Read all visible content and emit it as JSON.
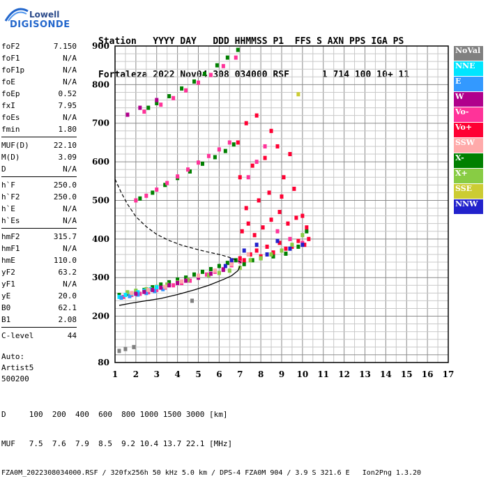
{
  "logo": {
    "line1": "Lowell",
    "line2": "DIGISONDE"
  },
  "header": {
    "labels": "Station   YYYY DAY   DDD HHMMSS P1  FFS S AXN PPS IGA PS",
    "values": "Fortaleza 2022 Nov04 308 034000 RSF      1 714 100 10+ 11"
  },
  "params": [
    {
      "name": "foF2",
      "value": "7.150"
    },
    {
      "name": "foF1",
      "value": "N/A"
    },
    {
      "name": "foF1p",
      "value": "N/A"
    },
    {
      "name": "foE",
      "value": "N/A"
    },
    {
      "name": "foEp",
      "value": "0.52"
    },
    {
      "name": "fxI",
      "value": "7.95"
    },
    {
      "name": "foEs",
      "value": "N/A"
    },
    {
      "name": "fmin",
      "value": "1.80"
    },
    {
      "sep": true
    },
    {
      "name": "MUF(D)",
      "value": "22.10"
    },
    {
      "name": "M(D)",
      "value": "3.09"
    },
    {
      "name": "D",
      "value": "N/A"
    },
    {
      "sep": true
    },
    {
      "name": "h`F",
      "value": "250.0"
    },
    {
      "name": "h`F2",
      "value": "250.0"
    },
    {
      "name": "h`E",
      "value": "N/A"
    },
    {
      "name": "h`Es",
      "value": "N/A"
    },
    {
      "sep": true
    },
    {
      "name": "hmF2",
      "value": "315.7"
    },
    {
      "name": "hmF1",
      "value": "N/A"
    },
    {
      "name": "hmE",
      "value": "110.0"
    },
    {
      "name": "yF2",
      "value": "63.2"
    },
    {
      "name": "yF1",
      "value": "N/A"
    },
    {
      "name": "yE",
      "value": "20.0"
    },
    {
      "name": "B0",
      "value": "62.1"
    },
    {
      "name": "B1",
      "value": "2.08"
    },
    {
      "sep": true
    },
    {
      "name": "C-level",
      "value": "44"
    }
  ],
  "auto": {
    "line1": "Auto:",
    "line2": "Artist5",
    "line3": "500200"
  },
  "legend": [
    {
      "label": "NoVal",
      "color": "#808080"
    },
    {
      "label": "NNE",
      "color": "#00e5ff"
    },
    {
      "label": "E",
      "color": "#3399ff"
    },
    {
      "label": "W",
      "color": "#b0008c"
    },
    {
      "label": "Vo-",
      "color": "#ff3399"
    },
    {
      "label": "Vo+",
      "color": "#ff0033"
    },
    {
      "label": "SSW",
      "color": "#ffaaaa"
    },
    {
      "label": "X-",
      "color": "#008000"
    },
    {
      "label": "X+",
      "color": "#88cc44"
    },
    {
      "label": "SSE",
      "color": "#cccc33"
    },
    {
      "label": "NNW",
      "color": "#2222cc"
    }
  ],
  "footer": {
    "line1": "D     100  200  400  600  800 1000 1500 3000 [km]",
    "line2": "MUF   7.5  7.6  7.9  8.5  9.2 10.4 13.7 22.1 [MHz]",
    "line3": "FZA0M_2022308034000.RSF / 320fx256h 50 kHz 5.0 km / DPS-4 FZA0M 904 / 3.9 S 321.6 E   Ion2Png 1.3.20"
  },
  "chart_data": {
    "type": "scatter",
    "title": "",
    "xlabel": "",
    "ylabel": "",
    "xlim": [
      1,
      17
    ],
    "ylim": [
      80,
      900
    ],
    "x_ticks": [
      1,
      2,
      3,
      4,
      5,
      6,
      7,
      8,
      9,
      10,
      11,
      12,
      13,
      14,
      15,
      16,
      17
    ],
    "y_ticks": [
      80,
      200,
      300,
      400,
      500,
      600,
      700,
      800,
      900
    ],
    "grid": true,
    "series": [
      {
        "name": "X-",
        "color": "#008000",
        "x": [
          1.2,
          1.6,
          2.0,
          2.4,
          2.8,
          3.2,
          3.6,
          4.0,
          4.4,
          4.8,
          5.2,
          5.6,
          6.0,
          6.4,
          6.8,
          2.2,
          2.8,
          3.4,
          4.0,
          4.6,
          5.2,
          5.8,
          6.3,
          6.7,
          2.6,
          3.0,
          3.6,
          4.2,
          4.8,
          5.3,
          5.9,
          6.4,
          6.9,
          7.2,
          7.6,
          8.0,
          8.6,
          9.2,
          9.8,
          10.2
        ],
        "y": [
          255,
          258,
          262,
          268,
          275,
          282,
          288,
          295,
          300,
          308,
          315,
          322,
          330,
          338,
          345,
          505,
          520,
          540,
          558,
          575,
          595,
          612,
          628,
          645,
          740,
          752,
          770,
          790,
          808,
          828,
          850,
          870,
          890,
          335,
          345,
          350,
          355,
          362,
          380,
          420
        ]
      },
      {
        "name": "Vo-",
        "color": "#ff3399",
        "x": [
          1.4,
          1.8,
          2.2,
          2.6,
          3.0,
          3.4,
          3.8,
          4.2,
          4.6,
          5.0,
          5.4,
          5.8,
          6.2,
          6.6,
          7.0,
          2.0,
          2.5,
          3.0,
          3.5,
          4.0,
          4.5,
          5.0,
          5.5,
          6.0,
          6.5,
          2.4,
          3.2,
          3.8,
          4.4,
          5.0,
          5.6,
          6.2,
          6.8,
          7.4,
          7.8,
          8.2,
          8.8,
          9.4,
          10.0
        ],
        "y": [
          250,
          255,
          258,
          262,
          268,
          274,
          280,
          286,
          292,
          300,
          308,
          315,
          322,
          332,
          342,
          500,
          512,
          528,
          545,
          562,
          580,
          598,
          615,
          632,
          650,
          730,
          748,
          765,
          785,
          805,
          825,
          848,
          870,
          560,
          600,
          640,
          420,
          400,
          390
        ]
      },
      {
        "name": "Vo+",
        "color": "#ff0033",
        "x": [
          6.6,
          7.0,
          7.2,
          7.5,
          7.8,
          8.0,
          8.3,
          8.6,
          8.9,
          9.2,
          9.5,
          9.8,
          10.1,
          10.3,
          7.1,
          7.4,
          7.7,
          8.1,
          8.5,
          8.9,
          9.3,
          9.7,
          10.0,
          7.3,
          7.9,
          8.4,
          9.0,
          9.6,
          7.0,
          7.6,
          8.2,
          8.8,
          9.4,
          10.2,
          6.9,
          7.3,
          7.8,
          8.5,
          9.1
        ],
        "y": [
          340,
          350,
          345,
          360,
          370,
          355,
          380,
          365,
          390,
          375,
          380,
          395,
          385,
          400,
          420,
          440,
          410,
          430,
          450,
          470,
          440,
          455,
          460,
          480,
          500,
          520,
          510,
          530,
          560,
          590,
          610,
          640,
          620,
          430,
          650,
          700,
          720,
          680,
          560
        ]
      },
      {
        "name": "X+",
        "color": "#88cc44",
        "x": [
          1.6,
          2.0,
          2.5,
          3.0,
          3.5,
          4.0,
          4.5,
          5.0,
          5.5,
          6.0,
          6.5,
          7.0,
          7.5,
          8.0,
          8.5,
          9.0,
          9.5,
          10.0
        ],
        "y": [
          262,
          266,
          270,
          276,
          282,
          288,
          294,
          300,
          306,
          312,
          318,
          325,
          345,
          350,
          360,
          370,
          385,
          410
        ]
      },
      {
        "name": "NNE",
        "color": "#00e5ff",
        "x": [
          1.2,
          1.5,
          1.8,
          2.1,
          2.4,
          2.7,
          3.0
        ],
        "y": [
          250,
          255,
          258,
          262,
          266,
          270,
          275
        ]
      },
      {
        "name": "E",
        "color": "#3399ff",
        "x": [
          1.3,
          1.7,
          2.1,
          2.5,
          2.9,
          3.3
        ],
        "y": [
          248,
          252,
          256,
          260,
          265,
          270
        ]
      },
      {
        "name": "W",
        "color": "#b0008c",
        "x": [
          2.0,
          2.4,
          2.8,
          3.2,
          3.6,
          4.0,
          4.4,
          5.0,
          5.6,
          6.2,
          1.6,
          2.2,
          3.0
        ],
        "y": [
          258,
          263,
          268,
          274,
          280,
          286,
          292,
          300,
          310,
          320,
          722,
          740,
          760
        ]
      },
      {
        "name": "SSW",
        "color": "#ffaaaa",
        "x": [
          1.8,
          2.6,
          3.4,
          4.2,
          5.0,
          5.8,
          6.6,
          7.4
        ],
        "y": [
          260,
          268,
          276,
          290,
          305,
          318,
          335,
          360
        ]
      },
      {
        "name": "NNW",
        "color": "#2222cc",
        "x": [
          6.3,
          6.6,
          7.2,
          7.8,
          8.3,
          8.8,
          9.4,
          10.0
        ],
        "y": [
          330,
          345,
          370,
          385,
          360,
          395,
          375,
          385
        ]
      },
      {
        "name": "SSE",
        "color": "#cccc33",
        "x": [
          9.8
        ],
        "y": [
          775
        ]
      },
      {
        "name": "NoVal",
        "color": "#808080",
        "x": [
          1.2,
          1.5,
          1.9,
          4.7
        ],
        "y": [
          110,
          115,
          120,
          240
        ]
      }
    ],
    "model_profile": {
      "x": [
        1.2,
        1.8,
        2.5,
        3.2,
        4.0,
        4.8,
        5.5,
        6.2,
        6.6,
        6.9,
        7.0
      ],
      "y": [
        228,
        234,
        240,
        246,
        256,
        268,
        280,
        295,
        305,
        318,
        330
      ]
    },
    "dashed_profile": {
      "x": [
        1.0,
        1.3,
        1.6,
        2.0,
        2.5,
        3.0,
        3.6,
        4.2,
        4.8,
        5.4,
        6.0,
        6.4,
        6.8,
        7.1
      ],
      "y": [
        555,
        520,
        490,
        458,
        432,
        412,
        396,
        384,
        375,
        367,
        360,
        354,
        346,
        338
      ]
    }
  }
}
